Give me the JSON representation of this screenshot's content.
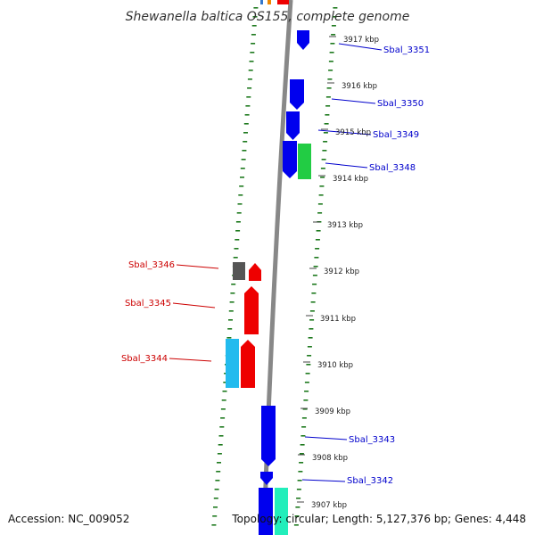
{
  "title": "Shewanella baltica OS155, complete genome",
  "footer": {
    "accession": "Accession: NC_009052",
    "stats": "Topology: circular; Length: 5,127,376 bp; Genes: 4,448"
  },
  "colors": {
    "backbone": "#888888",
    "dots": "#1f7a1f",
    "forward_label": "#0000cc",
    "reverse_label": "#cc0000"
  },
  "kbp_ticks": [
    "3917 kbp",
    "3916 kbp",
    "3915 kbp",
    "3914 kbp",
    "3913 kbp",
    "3912 kbp",
    "3911 kbp",
    "3910 kbp",
    "3909 kbp",
    "3908 kbp",
    "3907 kbp"
  ],
  "genes_forward": [
    {
      "label": "Sbal_3351",
      "color": "#0000ee"
    },
    {
      "label": "Sbal_3350",
      "color": "#0000ee"
    },
    {
      "label": "Sbal_3349",
      "color": "#0000ee"
    },
    {
      "label": "Sbal_3348",
      "color": "#0000ee"
    },
    {
      "label": "Sbal_3343",
      "color": "#0000ee"
    },
    {
      "label": "Sbal_3342",
      "color": "#0000ee"
    }
  ],
  "genes_reverse": [
    {
      "label": "Sbal_3346",
      "color": "#ee0000"
    },
    {
      "label": "Sbal_3345",
      "color": "#ee0000"
    },
    {
      "label": "Sbal_3344",
      "color": "#ee0000"
    }
  ],
  "other_features": [
    {
      "name": "grey-feature",
      "color": "#555555"
    },
    {
      "name": "cyan-feature",
      "color": "#22bbee"
    },
    {
      "name": "green-feature",
      "color": "#22cc44"
    },
    {
      "name": "teal-feature",
      "color": "#22eebb"
    }
  ]
}
